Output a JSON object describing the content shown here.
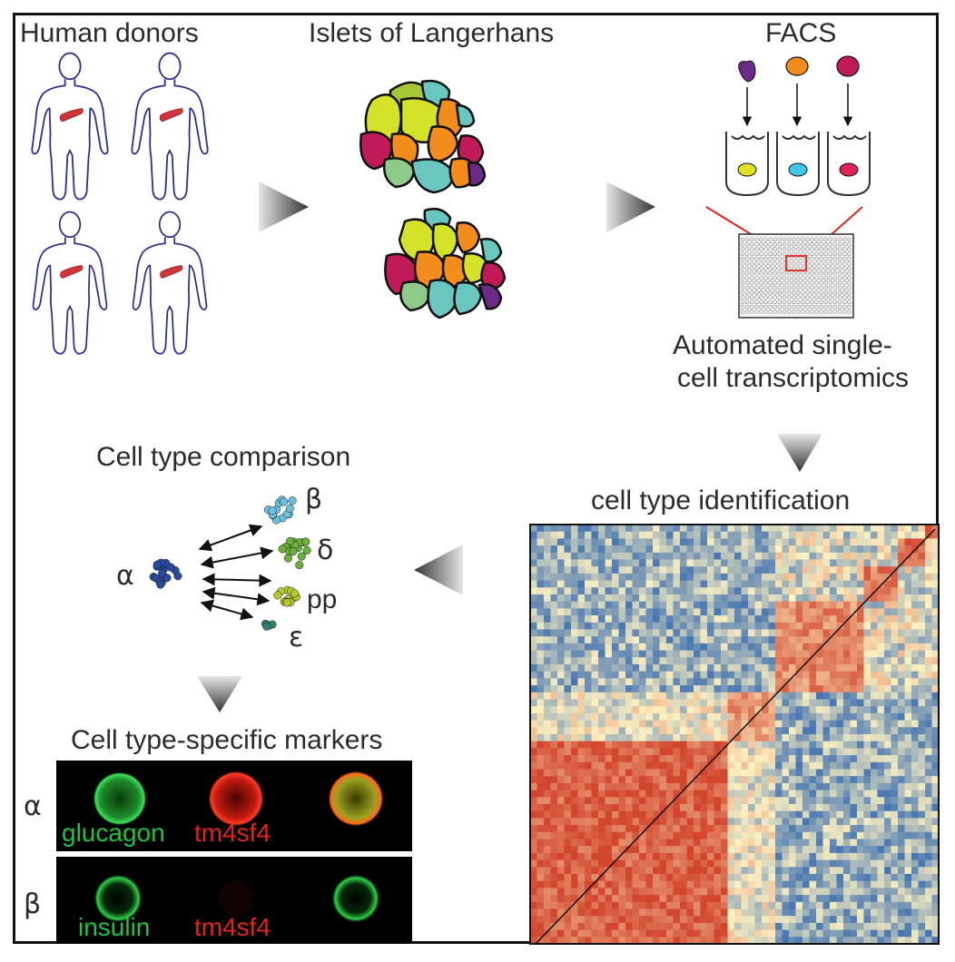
{
  "stages": {
    "donors": "Human donors",
    "islets": "Islets of Langerhans",
    "facs": "FACS",
    "transcriptomics_line1": "Automated single-",
    "transcriptomics_line2": "cell transcriptomics",
    "identification": "cell type identification",
    "comparison": "Cell type comparison",
    "markers": "Cell type-specific markers"
  },
  "cell_types": {
    "alpha": "α",
    "beta": "β",
    "delta": "δ",
    "pp": "pp",
    "epsilon": "ε"
  },
  "marker_rows": [
    {
      "type": "α",
      "stain_green": "glucagon",
      "stain_red": "tm4sf4"
    },
    {
      "type": "β",
      "stain_green": "insulin",
      "stain_red": "tm4sf4"
    }
  ],
  "colors": {
    "pancreas": "#d0353a",
    "body_outline": "#2c2f8f",
    "cluster_beta": "#6cc0de",
    "cluster_delta": "#6caf3a",
    "cluster_pp": "#b8c82a",
    "cluster_alpha": "#2a4aa0",
    "cluster_epsilon": "#2f7f72",
    "heatmap_high": "#d2462e",
    "heatmap_mid": "#fff3c2",
    "heatmap_low": "#3d6fb0",
    "stain_green": "#1fc43a",
    "stain_red": "#e6231b"
  }
}
